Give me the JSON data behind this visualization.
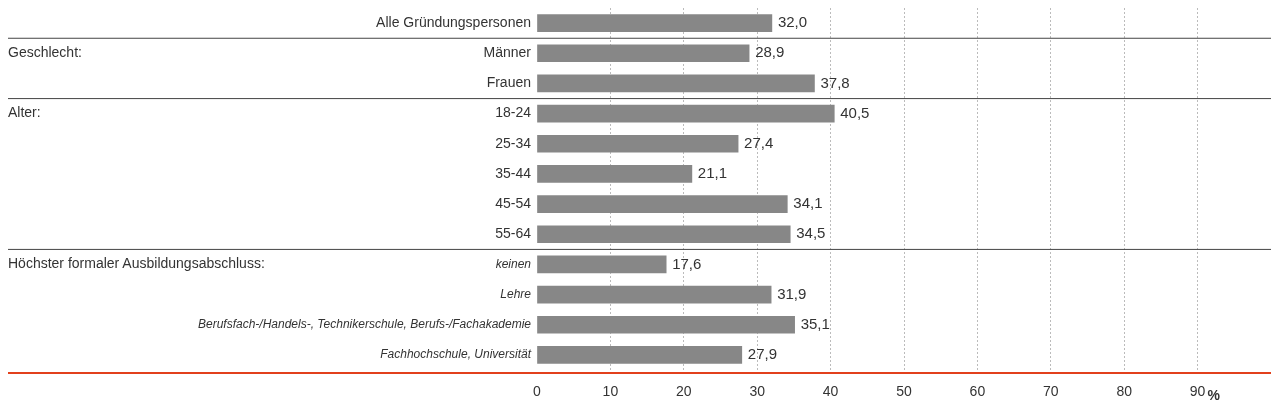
{
  "chart_data": {
    "type": "bar",
    "orientation": "horizontal",
    "xlabel": "%",
    "categories": [
      "Alle Gründungspersonen",
      "Männer",
      "Frauen",
      "18-24",
      "25-34",
      "35-44",
      "45-54",
      "55-64",
      "keinen",
      "Lehre",
      "Berufsfach-/Handels-, Technikerschule, Berufs-/Fachakademie",
      "Fachhochschule, Universität"
    ],
    "values": [
      32.0,
      28.9,
      37.8,
      40.5,
      27.4,
      21.1,
      34.1,
      34.5,
      17.6,
      31.9,
      35.1,
      27.9
    ],
    "value_labels": [
      "32,0",
      "28,9",
      "37,8",
      "40,5",
      "27,4",
      "21,1",
      "34,1",
      "34,5",
      "17,6",
      "31,9",
      "35,1",
      "27,9"
    ],
    "color": "#878787",
    "xlim": [
      0,
      100
    ],
    "xticks": [
      0,
      10,
      20,
      30,
      40,
      50,
      60,
      70,
      80,
      90
    ],
    "grid": "x",
    "annotations": [
      "Geschlecht:",
      "Alter:",
      "Höchster formaler Ausbildungsabschluss:"
    ]
  }
}
